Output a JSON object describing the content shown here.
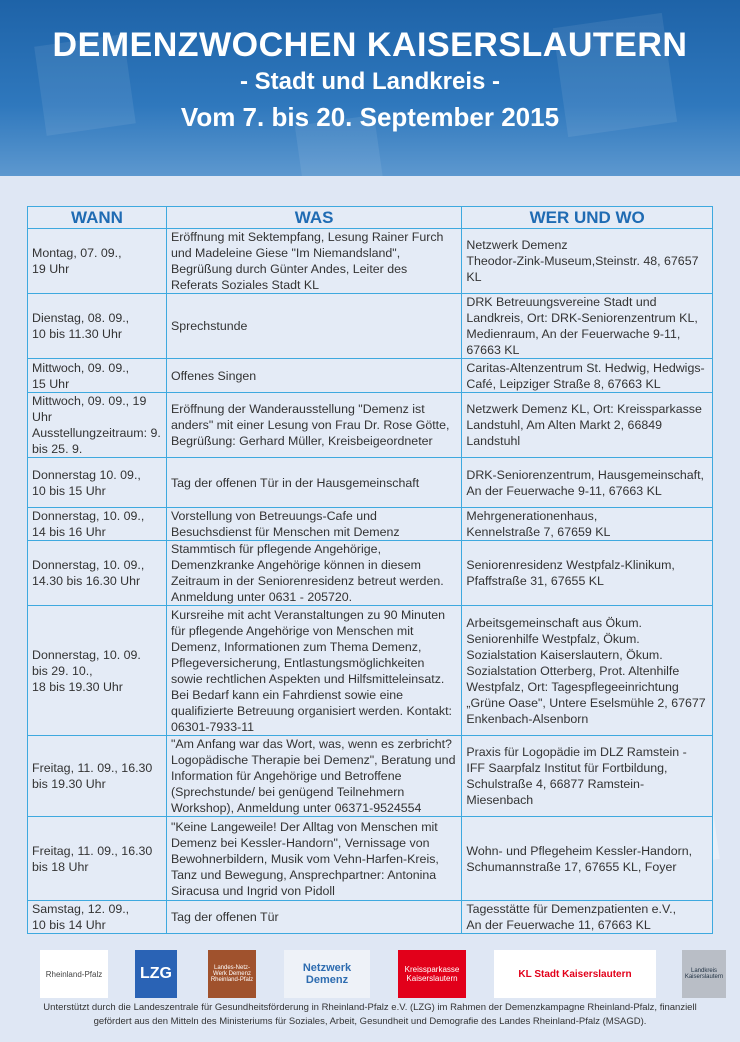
{
  "header": {
    "title": "DEMENZWOCHEN KAISERSLAUTERN",
    "subtitle": "- Stadt und Landkreis -",
    "dates": "Vom 7. bis 20. September 2015"
  },
  "table": {
    "columns": [
      "WANN",
      "WAS",
      "WER UND WO"
    ],
    "rows": [
      {
        "wann": "Montag,  07. 09.,\n19 Uhr",
        "was": "Eröffnung mit Sektempfang, Lesung Rainer Furch und Madeleine Giese \"Im Niemandsland\", Begrüßung durch Günter Andes, Leiter des Referats Soziales Stadt KL",
        "wo": "Netzwerk Demenz\nTheodor-Zink-Museum,Steinstr. 48, 67657 KL"
      },
      {
        "wann": "Dienstag, 08. 09.,\n10 bis 11.30 Uhr",
        "was": "Sprechstunde",
        "wo": "DRK Betreuungsvereine Stadt und Landkreis, Ort: DRK-Seniorenzentrum KL, Medienraum, An der Feuerwache 9-11, 67663 KL"
      },
      {
        "wann": "Mittwoch, 09. 09.,\n15 Uhr",
        "was": "Offenes Singen",
        "wo": "Caritas-Altenzentrum St. Hedwig, Hedwigs-Café, Leipziger Straße 8, 67663 KL"
      },
      {
        "wann": "Mittwoch, 09. 09., 19 Uhr\nAusstellungzeitraum: 9. bis 25. 9.",
        "was": "Eröffnung der Wanderausstellung \"Demenz ist anders\" mit einer Lesung von Frau Dr. Rose Götte,\nBegrüßung: Gerhard Müller, Kreisbeigeordneter",
        "wo": "Netzwerk Demenz KL, Ort: Kreissparkasse Landstuhl, Am Alten Markt 2, 66849 Landstuhl"
      },
      {
        "wann": "Donnerstag 10. 09.,\n10 bis 15 Uhr",
        "was": "Tag der offenen Tür in der Hausgemeinschaft",
        "wo": "DRK-Seniorenzentrum, Hausgemeinschaft,  An der Feuerwache 9-11, 67663 KL"
      },
      {
        "wann": "Donnerstag, 10. 09.,\n14 bis 16 Uhr",
        "was": "Vorstellung von Betreuungs-Cafe und Besuchsdienst für Menschen mit Demenz",
        "wo": "Mehrgenerationenhaus,\nKennelstraße 7, 67659 KL"
      },
      {
        "wann": "Donnerstag, 10. 09.,\n14.30 bis 16.30 Uhr",
        "was": "Stammtisch für pflegende Angehörige, Demenzkranke Angehörige können in diesem Zeitraum in der Seniorenresidenz betreut werden. Anmeldung unter 0631 - 205720.",
        "wo": "Seniorenresidenz Westpfalz-Klinikum, Pfaffstraße 31, 67655 KL"
      },
      {
        "wann": "Donnerstag, 10. 09.\nbis 29. 10.,\n18 bis 19.30 Uhr",
        "was": "Kursreihe mit acht Veranstaltungen zu 90 Minuten für pflegende Angehörige von Menschen mit Demenz, Informationen zum Thema Demenz, Pflegeversicherung, Entlastungsmöglichkeiten sowie rechtlichen Aspekten und Hilfsmitteleinsatz. Bei Bedarf kann ein Fahrdienst sowie eine qualifizierte Betreuung organisiert werden. Kontakt: 06301-7933-11",
        "wo": "Arbeitsgemeinschaft aus Ökum. Seniorenhilfe Westpfalz, Ökum. Sozialstation Kaiserslautern, Ökum. Sozialstation Otterberg, Prot. Altenhilfe Westpfalz, Ort: Tagespflegeeinrichtung „Grüne Oase\", Untere Eselsmühle 2, 67677 Enkenbach-Alsenborn"
      },
      {
        "wann": "Freitag, 11. 09., 16.30 bis 19.30 Uhr",
        "was": " \"Am Anfang war das Wort, was, wenn es zerbricht? Logopädische Therapie bei Demenz\", Beratung und Information für Angehörige und Betroffene (Sprechstunde/ bei genügend Teilnehmern Workshop), Anmeldung unter 06371-9524554",
        "wo": "Praxis für Logopädie im DLZ Ramstein - IFF Saarpfalz Institut für Fortbildung, Schulstraße 4, 66877 Ramstein-Miesenbach"
      },
      {
        "wann": "Freitag, 11. 09., 16.30 bis 18 Uhr",
        "was": "\"Keine Langeweile! Der Alltag von Menschen mit Demenz bei Kessler-Handorn\", Vernissage von Bewohnerbildern, Musik vom Vehn-Harfen-Kreis, Tanz und Bewegung, Ansprechpartner: Antonina Siracusa und Ingrid von Pidoll",
        "wo": "Wohn- und Pflegeheim Kessler-Handorn, Schumannstraße 17, 67655 KL, Foyer"
      },
      {
        "wann": "Samstag, 12. 09.,\n10 bis 14 Uhr",
        "was": "Tag der offenen Tür",
        "wo": "Tagesstätte für Demenzpatienten e.V.,\nAn der Feuerwache 11,  67663 KL"
      }
    ]
  },
  "logos": [
    "Rheinland-Pfalz",
    "LZG",
    "Landes-Netz-Werk Demenz Rheinland-Pfalz",
    "Netzwerk Demenz",
    "Kreissparkasse Kaiserslautern",
    "KL Stadt Kaiserslautern",
    "Landkreis Kaiserslautern"
  ],
  "footer": {
    "line1": "Unterstützt durch die Landeszentrale für Gesundheitsförderung in Rheinland-Pfalz e.V. (LZG) im Rahmen der Demenzkampagne Rheinland-Pfalz, finanziell",
    "line2": "gefördert aus den Mitteln des Ministeriums für Soziales, Arbeit, Gesundheit und Demografie des Landes Rheinland-Pfalz (MSAGD)."
  },
  "colors": {
    "header_blue": "#1e63a8",
    "table_border": "#3ea9df",
    "column_heading": "#1f6bb3",
    "background": "#dfe7f4"
  }
}
